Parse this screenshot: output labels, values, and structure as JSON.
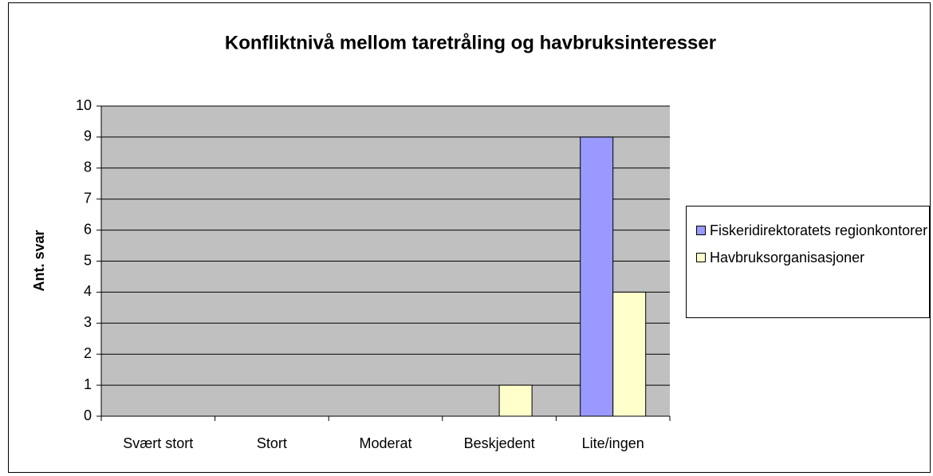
{
  "chart_data": {
    "type": "bar",
    "title": "Konfliktnivå mellom taretråling og havbruksinteresser",
    "y_label": "Ant. svar",
    "categories": [
      "Svært stort",
      "Stort",
      "Moderat",
      "Beskjedent",
      "Lite/ingen"
    ],
    "series": [
      {
        "name": "Fiskeridirektoratets regionkontorer",
        "color": "#9999ff",
        "values": [
          0,
          0,
          0,
          0,
          9
        ]
      },
      {
        "name": "Havbruksorganisasjoner",
        "color": "#ffffcc",
        "values": [
          0,
          0,
          0,
          1,
          4
        ]
      }
    ],
    "ylim": [
      0,
      10
    ],
    "yticks": [
      0,
      1,
      2,
      3,
      4,
      5,
      6,
      7,
      8,
      9,
      10
    ],
    "grid": true,
    "legend": "right",
    "plot_background": "#c0c0c0"
  }
}
